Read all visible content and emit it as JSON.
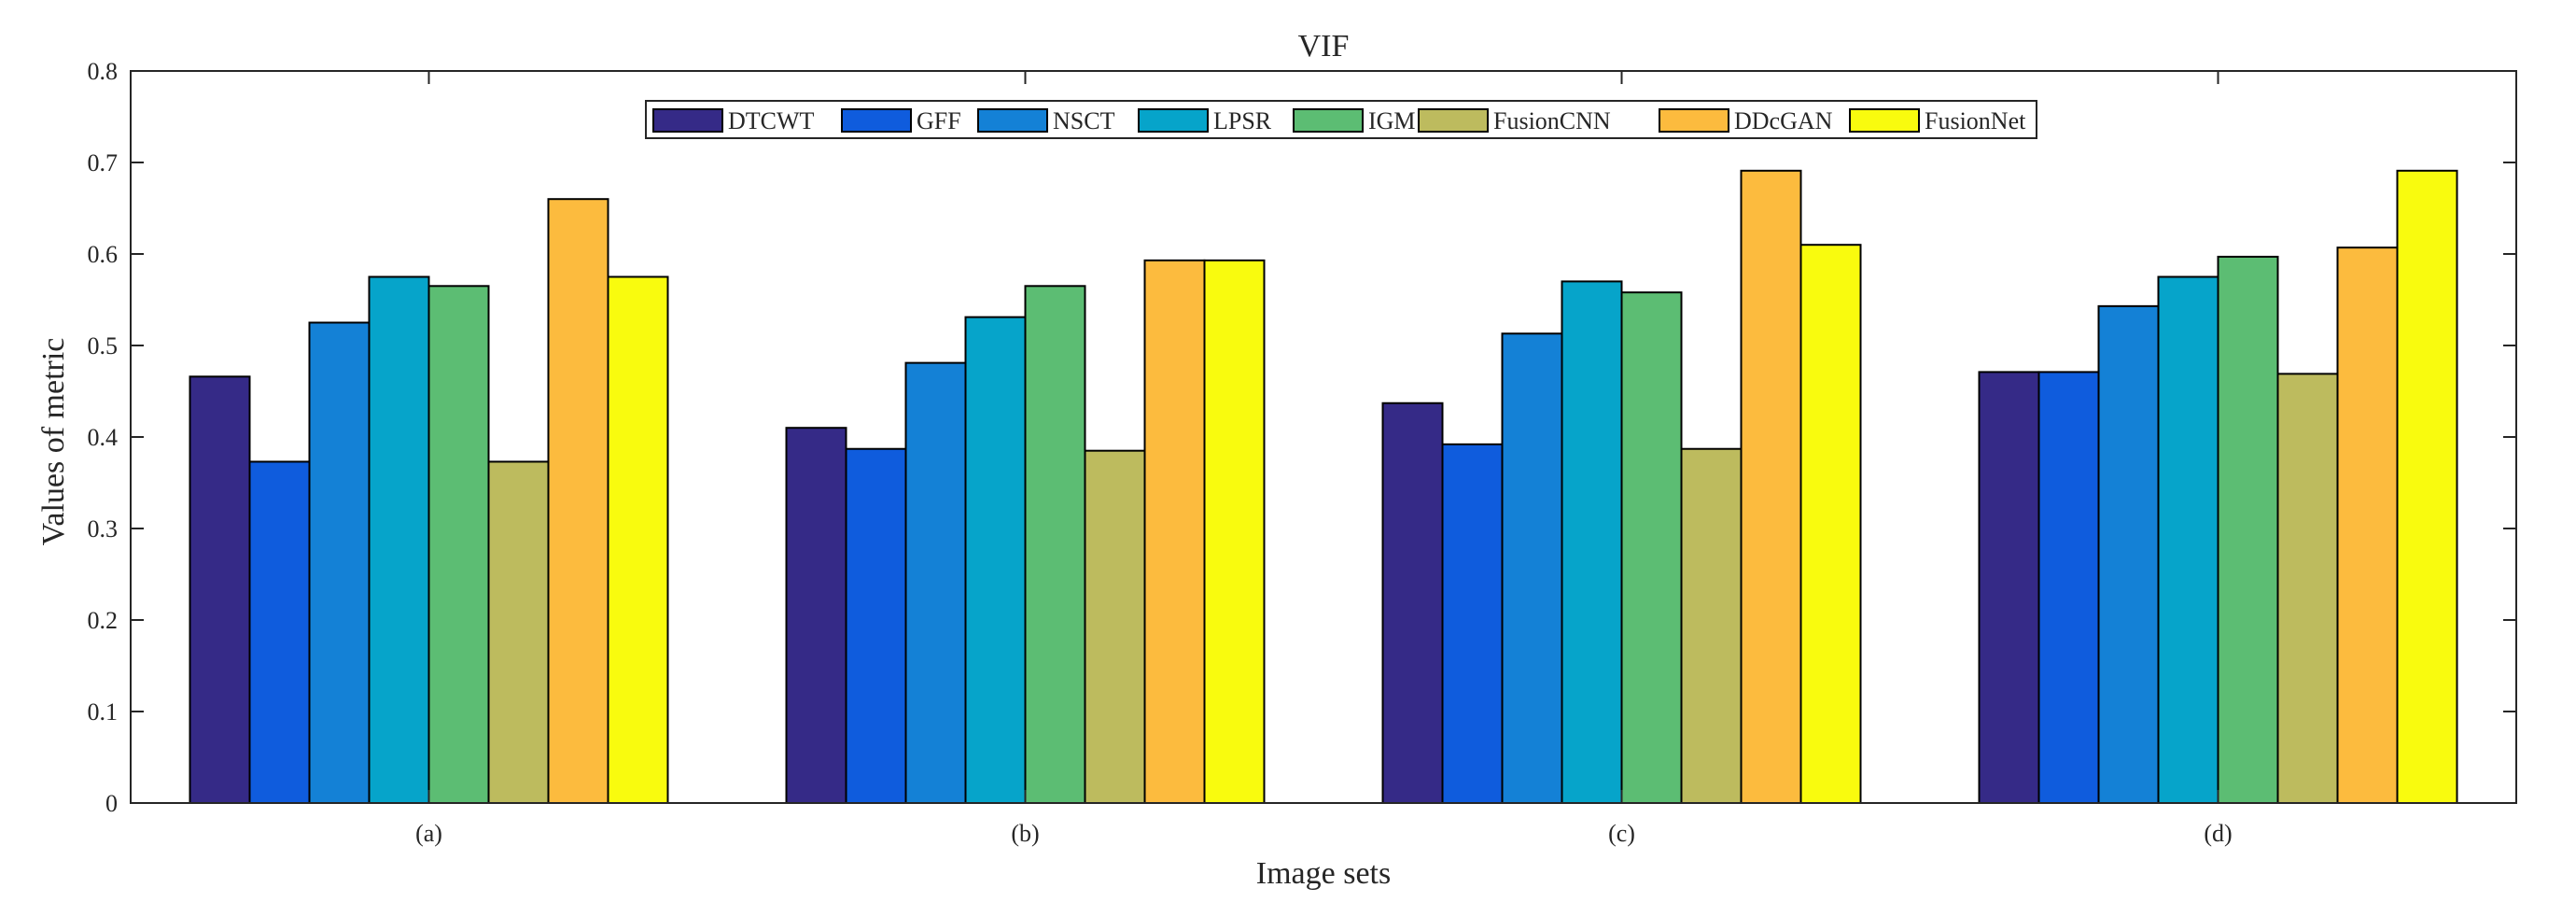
{
  "chart_data": {
    "type": "bar",
    "title": "VIF",
    "xlabel": "Image sets",
    "ylabel": "Values of metric",
    "categories": [
      "(a)",
      "(b)",
      "(c)",
      "(d)"
    ],
    "ylim": [
      0,
      0.8
    ],
    "yticks": [
      0,
      0.1,
      0.2,
      0.3,
      0.4,
      0.5,
      0.6,
      0.7,
      0.8
    ],
    "ytick_labels": [
      "0",
      "0.1",
      "0.2",
      "0.3",
      "0.4",
      "0.5",
      "0.6",
      "0.7",
      "0.8"
    ],
    "grid": false,
    "legend_position": "top-center",
    "series": [
      {
        "name": "DTCWT",
        "color": "#352A87",
        "values": [
          0.466,
          0.41,
          0.437,
          0.471
        ]
      },
      {
        "name": "GFF",
        "color": "#0F5CDD",
        "values": [
          0.373,
          0.387,
          0.392,
          0.471
        ]
      },
      {
        "name": "NSCT",
        "color": "#1481D6",
        "values": [
          0.525,
          0.481,
          0.513,
          0.543
        ]
      },
      {
        "name": "LPSR",
        "color": "#06A4CA",
        "values": [
          0.575,
          0.531,
          0.57,
          0.575
        ]
      },
      {
        "name": "IGM",
        "color": "#5CBD73",
        "values": [
          0.565,
          0.565,
          0.558,
          0.597
        ]
      },
      {
        "name": "FusionCNN",
        "color": "#BDBB5E",
        "values": [
          0.373,
          0.385,
          0.387,
          0.469
        ]
      },
      {
        "name": "DDcGAN",
        "color": "#FCBB3E",
        "values": [
          0.66,
          0.593,
          0.691,
          0.607
        ]
      },
      {
        "name": "FusionNet",
        "color": "#F9FB0E",
        "values": [
          0.575,
          0.593,
          0.61,
          0.691
        ]
      }
    ]
  }
}
